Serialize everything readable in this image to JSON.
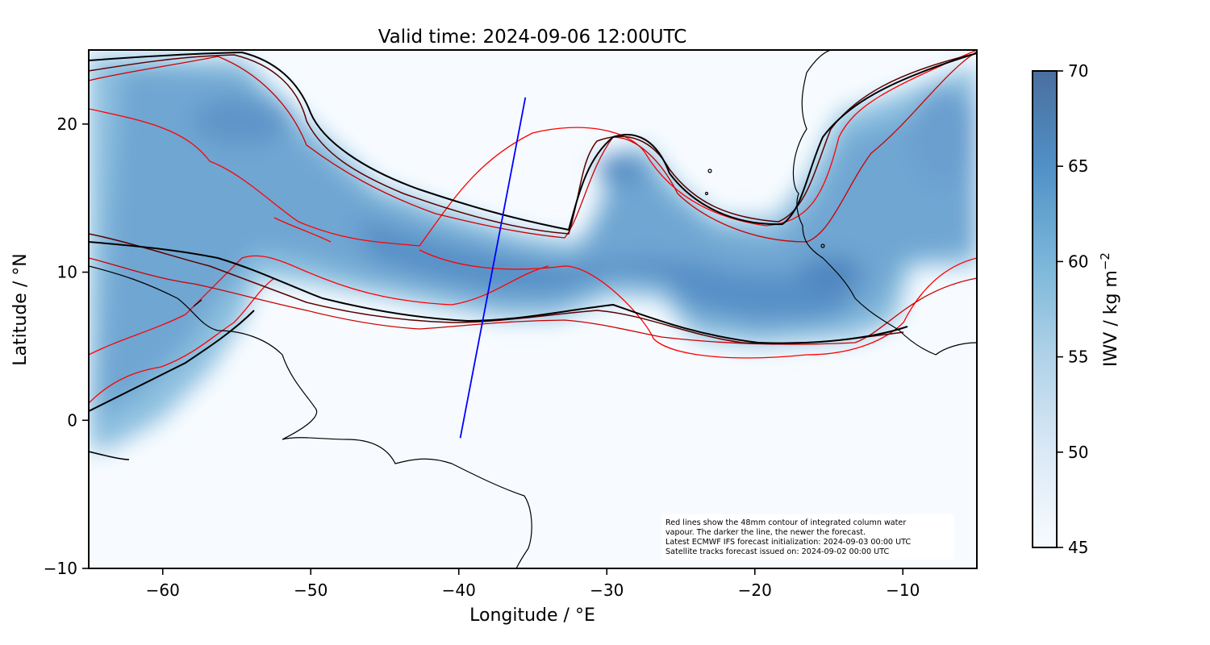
{
  "title": "Valid time: 2024-09-06 12:00UTC",
  "xlabel": "Longitude / °E",
  "ylabel": "Latitude / °N",
  "colorbar": {
    "label_prefix": "IWV / kg m",
    "label_exponent": "−2",
    "ticks": [
      "70",
      "65",
      "60",
      "55",
      "50",
      "45"
    ],
    "range": [
      45,
      70
    ],
    "color_low": "#f7fbff",
    "color_high": "#4a6f9e"
  },
  "map": {
    "lon_range": [
      -65,
      -5
    ],
    "lat_range": [
      -10,
      25
    ],
    "x_ticks": [
      {
        "value": -60,
        "label": "−60"
      },
      {
        "value": -50,
        "label": "−50"
      },
      {
        "value": -40,
        "label": "−40"
      },
      {
        "value": -30,
        "label": "−30"
      },
      {
        "value": -20,
        "label": "−20"
      },
      {
        "value": -10,
        "label": "−10"
      }
    ],
    "y_ticks": [
      {
        "value": 20,
        "label": "20"
      },
      {
        "value": 10,
        "label": "10"
      },
      {
        "value": 0,
        "label": "0"
      },
      {
        "value": -10,
        "label": "−10"
      }
    ],
    "satellite_track": {
      "start": [
        -39.9,
        -1.2
      ],
      "end": [
        -35.5,
        21.8
      ],
      "color": "#0000ff"
    },
    "contour_colors": {
      "oldest": "#ff0000",
      "older": "#cc0000",
      "newer": "#5a0000",
      "newest": "#000000"
    }
  },
  "note": {
    "line1": "Red lines show the 48mm contour of integrated column water",
    "line2": "vapour. The darker the line, the newer the forecast.",
    "line3": "Latest ECMWF IFS forecast initialization: 2024-09-03 00:00 UTC",
    "line4": "Satellite tracks forecast issued on: 2024-09-02 00:00 UTC"
  }
}
